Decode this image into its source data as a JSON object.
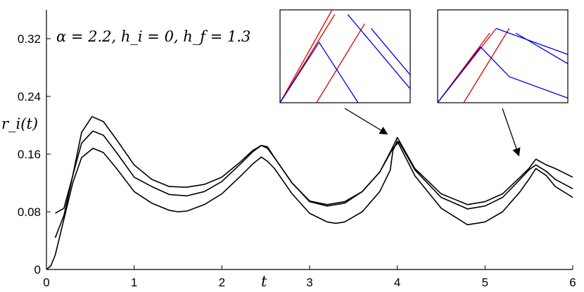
{
  "chart_data": {
    "type": "line",
    "ylabel": "r_i(t)",
    "xlabel": "t",
    "annotation": "α = 2.2, h_i = 0, h_f = 1.3",
    "xlim": [
      0,
      6
    ],
    "ylim": [
      0,
      0.36
    ],
    "xticks": [
      "0",
      "1",
      "2",
      "3",
      "4",
      "5",
      "6"
    ],
    "yticks": [
      "0",
      "0.08",
      "0.16",
      "0.24",
      "0.32"
    ],
    "grid": false,
    "series": [
      {
        "color": "#000000",
        "x": [
          0.1,
          0.2,
          0.3,
          0.4,
          0.52,
          0.65,
          0.8,
          1.0,
          1.2,
          1.4,
          1.6,
          1.8,
          2.0,
          2.2,
          2.35,
          2.45,
          2.52,
          2.6,
          2.8,
          3.0,
          3.2,
          3.4,
          3.6,
          3.8,
          3.95,
          4.0,
          4.2,
          4.5,
          4.8,
          5.0,
          5.2,
          5.4,
          5.5,
          5.58,
          5.7,
          5.8,
          6.0
        ],
        "y": [
          0.078,
          0.085,
          0.13,
          0.19,
          0.212,
          0.205,
          0.18,
          0.145,
          0.125,
          0.115,
          0.114,
          0.118,
          0.128,
          0.148,
          0.165,
          0.172,
          0.17,
          0.155,
          0.12,
          0.095,
          0.09,
          0.094,
          0.108,
          0.135,
          0.17,
          0.183,
          0.14,
          0.105,
          0.09,
          0.094,
          0.105,
          0.128,
          0.14,
          0.153,
          0.145,
          0.14,
          0.128
        ]
      },
      {
        "color": "#000000",
        "x": [
          0.1,
          0.2,
          0.3,
          0.4,
          0.53,
          0.65,
          0.8,
          1.0,
          1.2,
          1.4,
          1.6,
          1.8,
          2.0,
          2.2,
          2.35,
          2.45,
          2.52,
          2.6,
          2.8,
          3.0,
          3.2,
          3.4,
          3.6,
          3.8,
          3.95,
          4.02,
          4.2,
          4.5,
          4.8,
          5.0,
          5.2,
          5.4,
          5.5,
          5.58,
          5.7,
          5.8,
          6.0
        ],
        "y": [
          0.044,
          0.075,
          0.13,
          0.175,
          0.192,
          0.186,
          0.162,
          0.128,
          0.115,
          0.104,
          0.102,
          0.108,
          0.122,
          0.145,
          0.163,
          0.172,
          0.168,
          0.155,
          0.12,
          0.094,
          0.088,
          0.092,
          0.108,
          0.135,
          0.168,
          0.177,
          0.138,
          0.1,
          0.084,
          0.088,
          0.1,
          0.125,
          0.138,
          0.145,
          0.136,
          0.125,
          0.112
        ]
      },
      {
        "color": "#000000",
        "x": [
          0.0,
          0.05,
          0.1,
          0.2,
          0.3,
          0.4,
          0.53,
          0.65,
          0.8,
          1.0,
          1.2,
          1.4,
          1.5,
          1.6,
          1.8,
          2.0,
          2.2,
          2.35,
          2.45,
          2.52,
          2.6,
          2.8,
          3.0,
          3.2,
          3.3,
          3.4,
          3.6,
          3.8,
          3.92,
          3.95,
          4.0,
          4.2,
          4.5,
          4.8,
          5.0,
          5.2,
          5.4,
          5.5,
          5.58,
          5.7,
          5.8,
          6.0
        ],
        "y": [
          0.0,
          0.005,
          0.02,
          0.07,
          0.12,
          0.155,
          0.168,
          0.162,
          0.14,
          0.108,
          0.092,
          0.082,
          0.08,
          0.081,
          0.09,
          0.105,
          0.128,
          0.146,
          0.156,
          0.15,
          0.14,
          0.105,
          0.078,
          0.066,
          0.064,
          0.066,
          0.08,
          0.108,
          0.138,
          0.165,
          0.178,
          0.13,
          0.085,
          0.062,
          0.066,
          0.08,
          0.108,
          0.125,
          0.14,
          0.13,
          0.115,
          0.1
        ]
      }
    ],
    "insets": [
      {
        "points_to": [
          3.95,
          0.18
        ],
        "series": [
          {
            "color": "#e00000",
            "x": [
              0.0,
              0.4
            ],
            "y": [
              0.0,
              1.0
            ]
          },
          {
            "color": "#e00000",
            "x": [
              0.0,
              0.42
            ],
            "y": [
              0.0,
              0.95
            ]
          },
          {
            "color": "#e00000",
            "x": [
              0.28,
              0.65
            ],
            "y": [
              0.0,
              0.85
            ]
          },
          {
            "color": "#0000e0",
            "x": [
              0.0,
              0.3,
              0.6
            ],
            "y": [
              0.0,
              0.65,
              0.0
            ]
          },
          {
            "color": "#0000e0",
            "x": [
              0.52,
              1.0
            ],
            "y": [
              0.95,
              0.15
            ]
          },
          {
            "color": "#0000e0",
            "x": [
              0.7,
              1.0
            ],
            "y": [
              0.8,
              0.3
            ]
          }
        ]
      },
      {
        "points_to": [
          5.45,
          0.15
        ],
        "series": [
          {
            "color": "#e00000",
            "x": [
              0.0,
              0.4
            ],
            "y": [
              0.0,
              0.75
            ]
          },
          {
            "color": "#e00000",
            "x": [
              0.0,
              0.45
            ],
            "y": [
              0.0,
              0.8
            ]
          },
          {
            "color": "#e00000",
            "x": [
              0.2,
              0.55
            ],
            "y": [
              0.0,
              0.8
            ]
          },
          {
            "color": "#0000e0",
            "x": [
              0.0,
              0.33,
              0.55,
              1.0
            ],
            "y": [
              0.0,
              0.6,
              0.28,
              0.05
            ]
          },
          {
            "color": "#0000e0",
            "x": [
              0.45,
              1.0
            ],
            "y": [
              0.8,
              0.52
            ]
          },
          {
            "color": "#0000e0",
            "x": [
              0.6,
              1.0
            ],
            "y": [
              0.75,
              0.42
            ]
          }
        ]
      }
    ]
  }
}
